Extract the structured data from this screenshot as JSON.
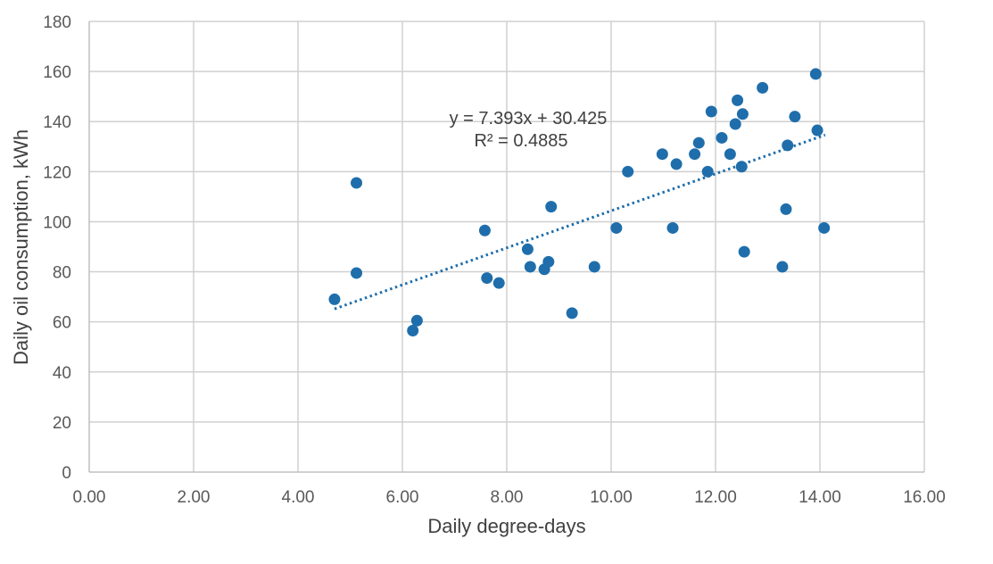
{
  "chart_data": {
    "type": "scatter",
    "xlabel": "Daily degree-days",
    "ylabel": "Daily oil consumption, kWh",
    "xlim": [
      0,
      16
    ],
    "ylim": [
      0,
      180
    ],
    "x_ticks": [
      "0.00",
      "2.00",
      "4.00",
      "6.00",
      "8.00",
      "10.00",
      "12.00",
      "14.00",
      "16.00"
    ],
    "y_ticks": [
      "0",
      "20",
      "40",
      "60",
      "80",
      "100",
      "120",
      "140",
      "160",
      "180"
    ],
    "grid": true,
    "marker_color": "#1f6eab",
    "trendline_color": "#1f6eab",
    "trendline": {
      "type": "linear",
      "slope": 7.393,
      "intercept": 30.425,
      "x_range": [
        4.7,
        14.1
      ],
      "style": "dotted"
    },
    "annotation": {
      "equation": "y = 7.393x + 30.425",
      "r_squared": "R² = 0.4885"
    },
    "points": [
      {
        "x": 4.7,
        "y": 69
      },
      {
        "x": 5.12,
        "y": 115.5
      },
      {
        "x": 5.12,
        "y": 79.5
      },
      {
        "x": 6.2,
        "y": 56.5
      },
      {
        "x": 6.28,
        "y": 60.5
      },
      {
        "x": 7.58,
        "y": 96.5
      },
      {
        "x": 7.62,
        "y": 77.5
      },
      {
        "x": 7.85,
        "y": 75.5
      },
      {
        "x": 8.4,
        "y": 89
      },
      {
        "x": 8.45,
        "y": 82
      },
      {
        "x": 8.72,
        "y": 81
      },
      {
        "x": 8.8,
        "y": 84
      },
      {
        "x": 8.85,
        "y": 106
      },
      {
        "x": 9.25,
        "y": 63.5
      },
      {
        "x": 9.68,
        "y": 82
      },
      {
        "x": 10.1,
        "y": 97.5
      },
      {
        "x": 10.32,
        "y": 120
      },
      {
        "x": 10.98,
        "y": 127
      },
      {
        "x": 11.18,
        "y": 97.5
      },
      {
        "x": 11.25,
        "y": 123
      },
      {
        "x": 11.6,
        "y": 127
      },
      {
        "x": 11.68,
        "y": 131.5
      },
      {
        "x": 11.85,
        "y": 120
      },
      {
        "x": 11.92,
        "y": 144
      },
      {
        "x": 12.12,
        "y": 133.5
      },
      {
        "x": 12.28,
        "y": 127
      },
      {
        "x": 12.38,
        "y": 139
      },
      {
        "x": 12.42,
        "y": 148.5
      },
      {
        "x": 12.5,
        "y": 122
      },
      {
        "x": 12.52,
        "y": 143
      },
      {
        "x": 12.55,
        "y": 88
      },
      {
        "x": 12.9,
        "y": 153.5
      },
      {
        "x": 13.28,
        "y": 82
      },
      {
        "x": 13.35,
        "y": 105
      },
      {
        "x": 13.38,
        "y": 130.5
      },
      {
        "x": 13.52,
        "y": 142
      },
      {
        "x": 13.92,
        "y": 159
      },
      {
        "x": 13.95,
        "y": 136.5
      },
      {
        "x": 14.08,
        "y": 97.5
      }
    ]
  }
}
